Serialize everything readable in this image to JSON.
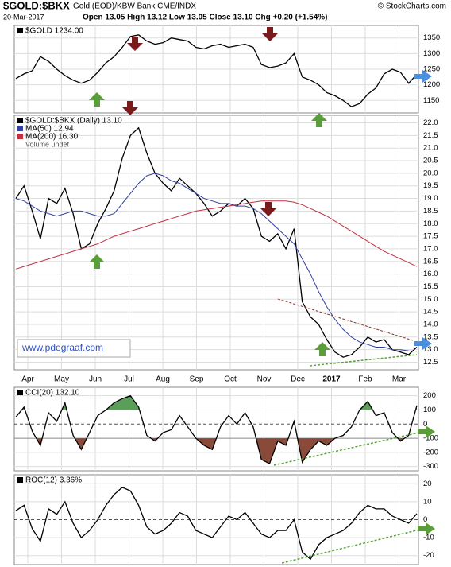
{
  "header": {
    "symbol": "$GOLD:$BKX",
    "description": "Gold (EOD)/KBW Bank CME/INDX",
    "date": "20-Mar-2017",
    "quote": "Open 13.05 High 13.12 Low 13.05 Close 13.10 Chg +0.20 (+1.54%)",
    "credit": "© StockCharts.com"
  },
  "x_labels": [
    "Apr",
    "May",
    "Jun",
    "Jul",
    "Aug",
    "Sep",
    "Oct",
    "Nov",
    "Dec",
    "2017",
    "Feb",
    "Mar"
  ],
  "chart_data": [
    {
      "type": "line",
      "series": [
        {
          "name": "$GOLD 1234.00",
          "color": "#000000",
          "values": [
            1220,
            1235,
            1245,
            1290,
            1275,
            1250,
            1230,
            1215,
            1205,
            1215,
            1240,
            1270,
            1290,
            1320,
            1355,
            1360,
            1340,
            1330,
            1335,
            1350,
            1345,
            1340,
            1320,
            1315,
            1325,
            1330,
            1320,
            1325,
            1330,
            1320,
            1265,
            1255,
            1260,
            1270,
            1300,
            1225,
            1215,
            1200,
            1175,
            1165,
            1150,
            1130,
            1140,
            1170,
            1190,
            1235,
            1250,
            1240,
            1205,
            1234
          ]
        }
      ],
      "ylim": [
        1110,
        1390
      ],
      "yticks": [
        1150,
        1200,
        1250,
        1300,
        1350
      ]
    },
    {
      "type": "line",
      "series": [
        {
          "name": "$GOLD:$BKX (Daily) 13.10",
          "color": "#000000",
          "values": [
            19.0,
            19.5,
            18.5,
            17.4,
            19.0,
            18.8,
            19.4,
            18.4,
            17.0,
            17.2,
            18.0,
            18.6,
            19.3,
            20.6,
            21.5,
            21.8,
            20.8,
            20.0,
            19.6,
            19.3,
            19.8,
            19.5,
            19.2,
            18.8,
            18.3,
            18.5,
            18.8,
            18.7,
            19.0,
            18.6,
            17.5,
            17.3,
            17.6,
            17.0,
            17.8,
            14.9,
            14.3,
            14.0,
            13.4,
            12.9,
            12.7,
            12.8,
            13.1,
            13.5,
            13.3,
            13.4,
            13.0,
            12.9,
            12.8,
            13.1
          ]
        },
        {
          "name": "MA(50) 12.94",
          "color": "#3040a0",
          "values": [
            19.0,
            18.9,
            18.7,
            18.5,
            18.4,
            18.3,
            18.4,
            18.5,
            18.5,
            18.4,
            18.3,
            18.3,
            18.4,
            18.8,
            19.2,
            19.6,
            19.9,
            20.0,
            19.9,
            19.7,
            19.6,
            19.4,
            19.2,
            19.0,
            18.9,
            18.8,
            18.8,
            18.7,
            18.7,
            18.6,
            18.4,
            18.1,
            17.8,
            17.5,
            17.2,
            16.6,
            16.0,
            15.3,
            14.7,
            14.2,
            13.8,
            13.5,
            13.3,
            13.2,
            13.1,
            13.1,
            13.0,
            13.0,
            12.95,
            12.94
          ]
        },
        {
          "name": "MA(200) 16.30",
          "color": "#c03040",
          "values": [
            16.2,
            16.3,
            16.4,
            16.5,
            16.6,
            16.7,
            16.8,
            16.9,
            17.0,
            17.1,
            17.2,
            17.35,
            17.5,
            17.6,
            17.7,
            17.8,
            17.9,
            18.0,
            18.1,
            18.2,
            18.3,
            18.4,
            18.5,
            18.55,
            18.6,
            18.65,
            18.7,
            18.75,
            18.8,
            18.85,
            18.9,
            18.9,
            18.9,
            18.9,
            18.85,
            18.75,
            18.6,
            18.45,
            18.3,
            18.1,
            17.9,
            17.7,
            17.5,
            17.3,
            17.1,
            16.9,
            16.75,
            16.6,
            16.45,
            16.3
          ]
        }
      ],
      "note": "Volume undef",
      "annotation": "www.pdegraaf.com",
      "ylim": [
        12.2,
        22.3
      ],
      "yticks": [
        12.5,
        {
          "value": 13,
          "label": "13.0"
        },
        13.5,
        {
          "value": 14,
          "label": "14.0"
        },
        14.5,
        {
          "value": 15,
          "label": "15.0"
        },
        15.5,
        {
          "value": 16,
          "label": "16.0"
        },
        16.5,
        {
          "value": 17,
          "label": "17.0"
        },
        17.5,
        {
          "value": 18,
          "label": "18.0"
        },
        18.5,
        {
          "value": 19,
          "label": "19.0"
        },
        19.5,
        {
          "value": 20,
          "label": "20.0"
        },
        20.5,
        {
          "value": 21,
          "label": "21.0"
        },
        21.5,
        {
          "value": 22,
          "label": "22.0"
        }
      ]
    },
    {
      "type": "line",
      "series": [
        {
          "name": "CCI(20) 132.10",
          "color": "#000000",
          "values": [
            50,
            120,
            -50,
            -150,
            80,
            20,
            150,
            -80,
            -180,
            -60,
            60,
            100,
            150,
            180,
            200,
            120,
            -80,
            -120,
            -60,
            -40,
            60,
            -20,
            -100,
            -150,
            -180,
            -20,
            60,
            0,
            80,
            -20,
            -250,
            -280,
            -120,
            -150,
            20,
            -270,
            -180,
            -120,
            -150,
            -100,
            -80,
            -20,
            100,
            160,
            60,
            80,
            -60,
            -120,
            -80,
            132.1
          ]
        }
      ],
      "ylim": [
        -330,
        260
      ],
      "yticks": [
        -300,
        -200,
        -100,
        0,
        100,
        200
      ]
    },
    {
      "type": "line",
      "series": [
        {
          "name": "ROC(12) 3.36%",
          "color": "#000000",
          "values": [
            5,
            8,
            -5,
            -12,
            6,
            3,
            10,
            -2,
            -10,
            -6,
            0,
            8,
            14,
            18,
            16,
            8,
            -4,
            -8,
            -6,
            -2,
            4,
            2,
            -6,
            -8,
            -10,
            -4,
            2,
            0,
            4,
            -2,
            -8,
            -10,
            -6,
            -6,
            0,
            -18,
            -22,
            -14,
            -10,
            -8,
            -6,
            -2,
            4,
            8,
            6,
            6,
            2,
            0,
            -2,
            3.36
          ]
        }
      ],
      "ylim": [
        -25,
        25
      ],
      "yticks": [
        -20,
        -10,
        0,
        10,
        20
      ]
    }
  ]
}
